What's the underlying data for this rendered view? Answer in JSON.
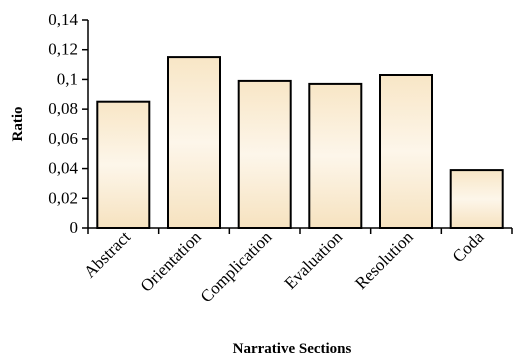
{
  "chart_data": {
    "type": "bar",
    "categories": [
      "Abstract",
      "Orientation",
      "Complication",
      "Evaluation",
      "Resolution",
      "Coda"
    ],
    "values": [
      0.085,
      0.115,
      0.099,
      0.097,
      0.103,
      0.039
    ],
    "xlabel": "Narrative Sections",
    "ylabel": "Ratio",
    "ylim": [
      0,
      0.14
    ],
    "yticks": [
      "0",
      "0,02",
      "0,04",
      "0,06",
      "0,08",
      "0,1",
      "0,12",
      "0,14"
    ],
    "grid": false,
    "legend": "none",
    "colors": {
      "bar_fill_light": "#fdf4e4",
      "bar_fill_dark": "#f5deb3",
      "bar_stroke": "#000000",
      "axis": "#000000"
    }
  }
}
